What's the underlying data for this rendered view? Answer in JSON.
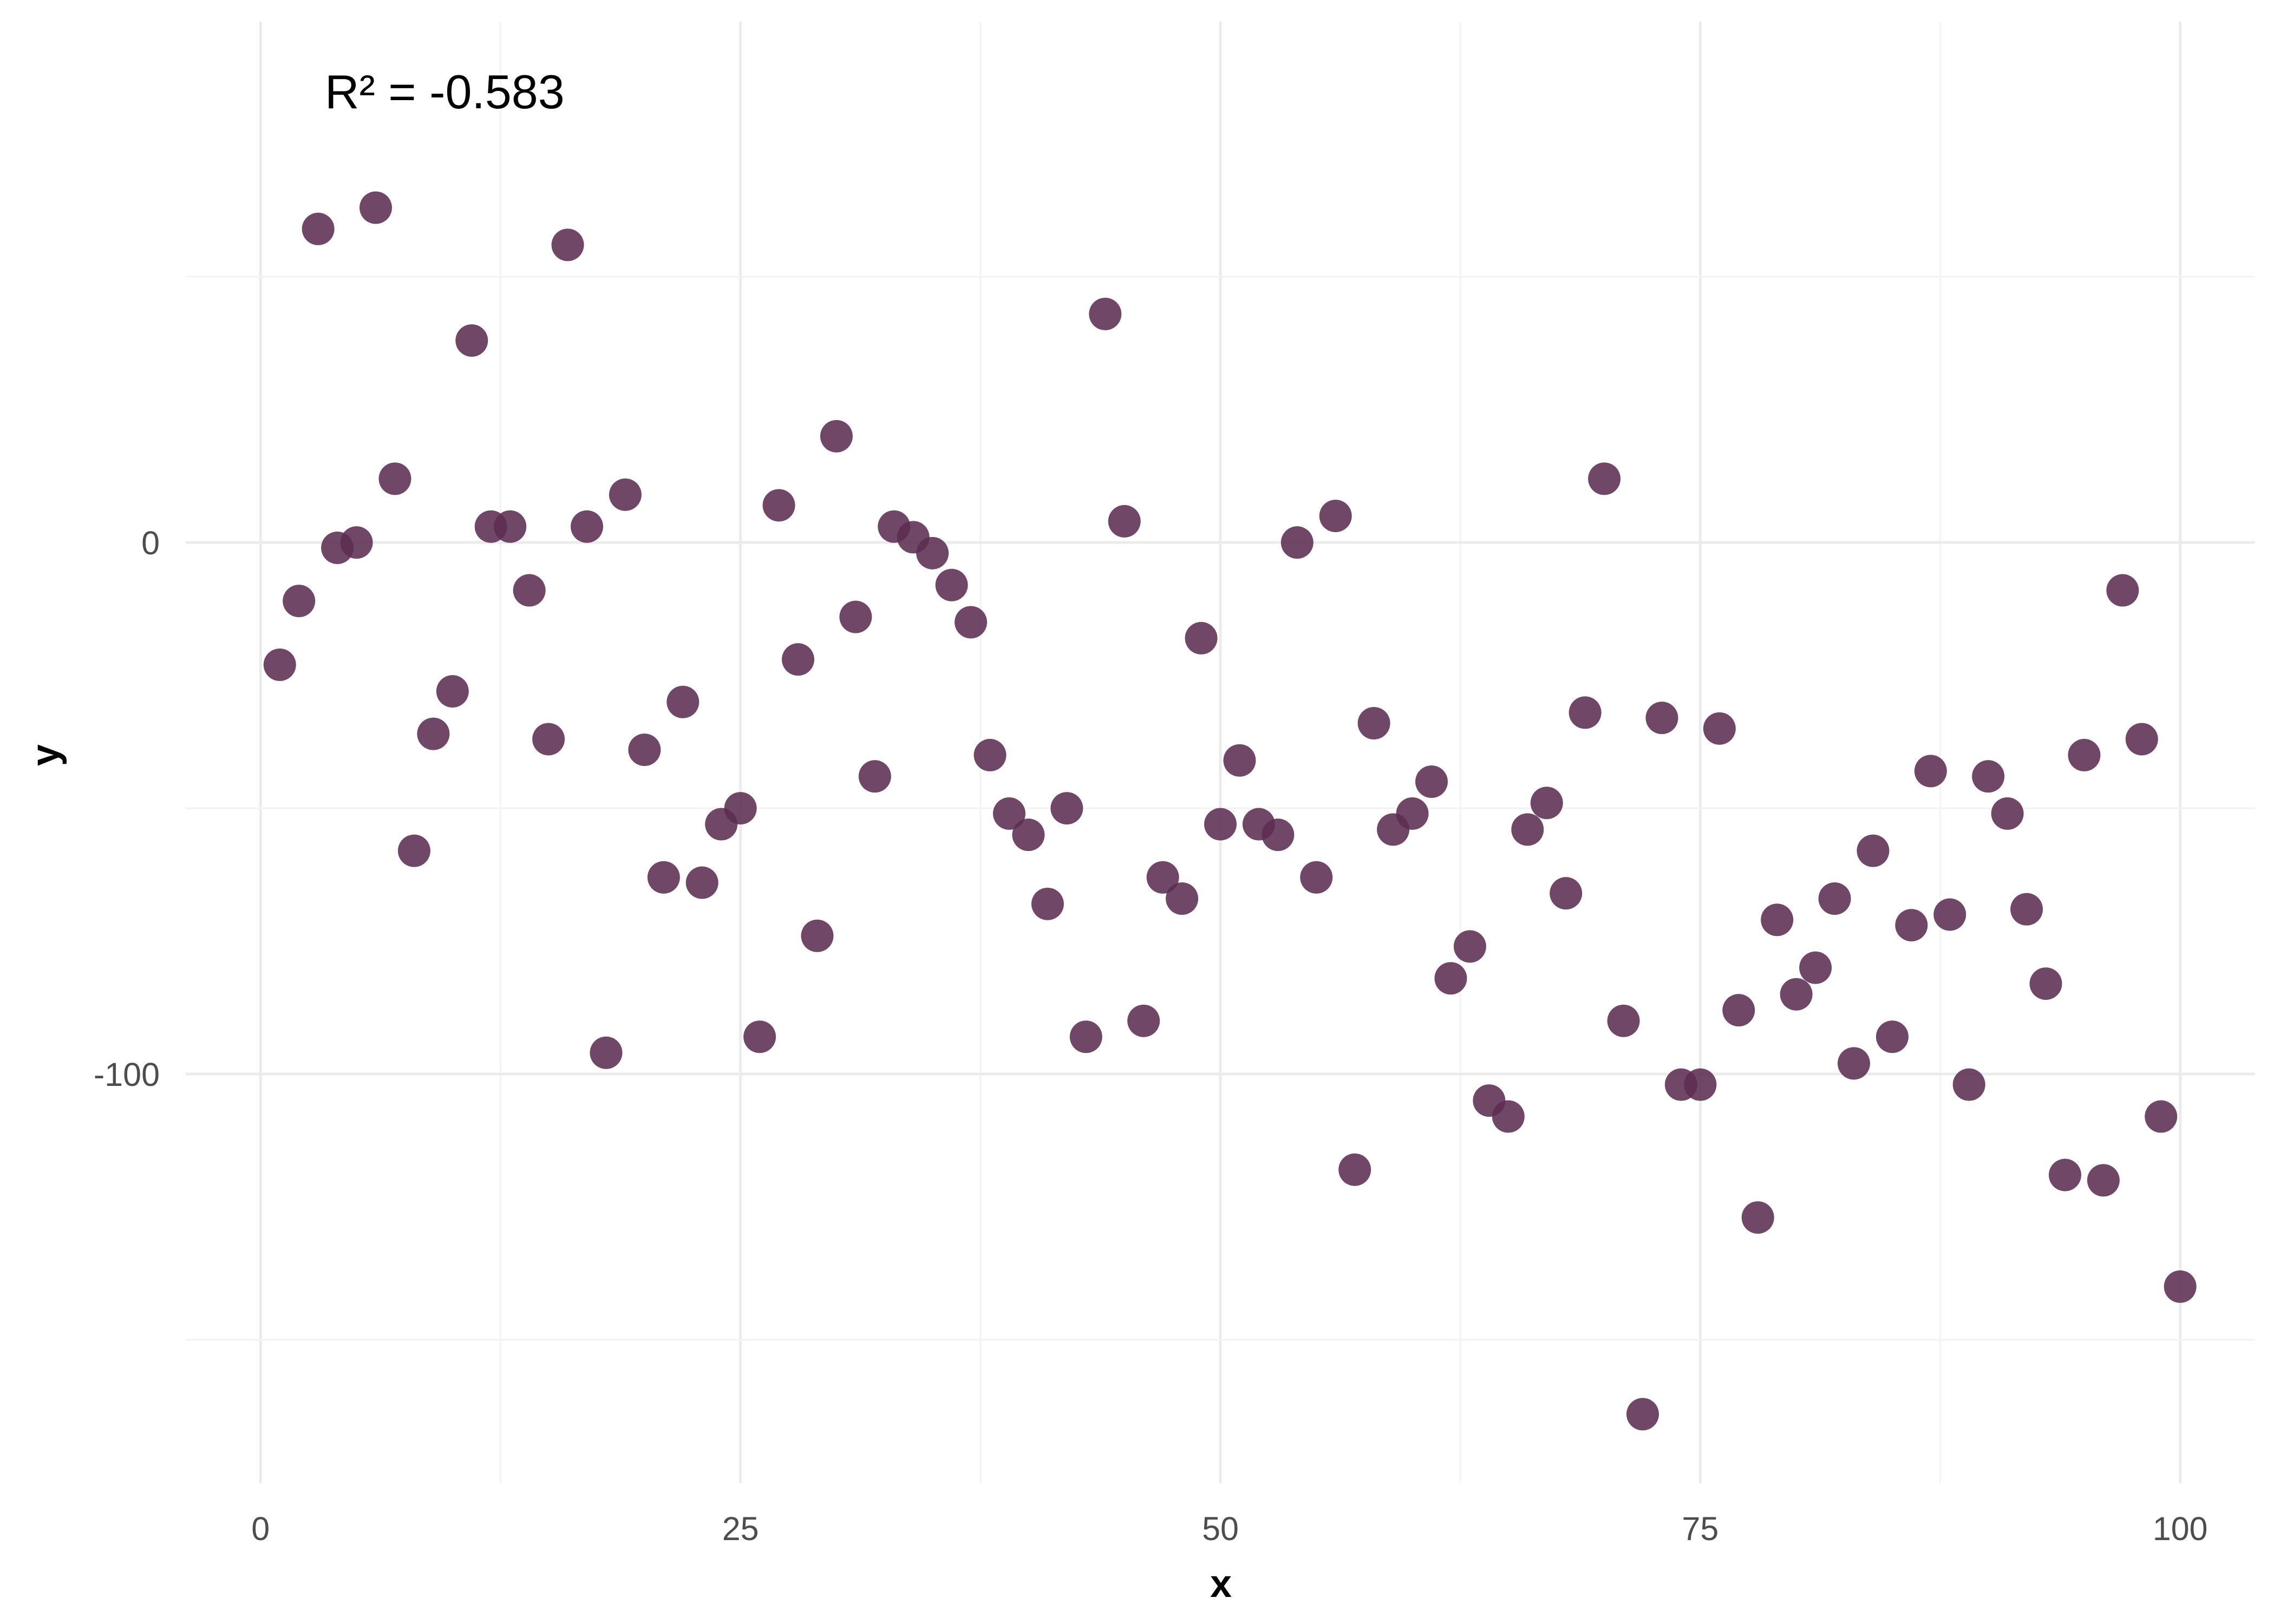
{
  "chart_data": {
    "type": "scatter",
    "title": "",
    "xlabel": "x",
    "ylabel": "y",
    "xlim": [
      -3.9,
      103.9
    ],
    "ylim": [
      -177,
      98
    ],
    "x_ticks": [
      0,
      25,
      50,
      75,
      100
    ],
    "x_tick_labels": [
      "0",
      "25",
      "50",
      "75",
      "100"
    ],
    "y_ticks": [
      0,
      -100
    ],
    "y_tick_labels": [
      "0",
      "-100"
    ],
    "grid": true,
    "annotation": "R² = -0.583",
    "point_color": "#5c2e52",
    "x": [
      1,
      2,
      3,
      4,
      5,
      6,
      7,
      8,
      9,
      10,
      11,
      12,
      13,
      14,
      15,
      16,
      17,
      18,
      19,
      20,
      21,
      22,
      23,
      24,
      25,
      26,
      27,
      28,
      29,
      30,
      31,
      32,
      33,
      34,
      35,
      36,
      37,
      38,
      39,
      40,
      41,
      42,
      43,
      44,
      45,
      46,
      47,
      48,
      49,
      50,
      51,
      52,
      53,
      54,
      55,
      56,
      57,
      58,
      59,
      60,
      61,
      62,
      63,
      64,
      65,
      66,
      67,
      68,
      69,
      70,
      71,
      72,
      73,
      74,
      75,
      76,
      77,
      78,
      79,
      80,
      81,
      82,
      83,
      84,
      85,
      86,
      87,
      88,
      89,
      90,
      91,
      92,
      93,
      94,
      95,
      96,
      97,
      98,
      99,
      100
    ],
    "y": [
      -23,
      -11,
      59,
      -1,
      0,
      63,
      12,
      -58,
      -36,
      -28,
      38,
      3,
      3,
      -9,
      -37,
      56,
      3,
      -96,
      9,
      -39,
      -63,
      -30,
      -64,
      -53,
      -50,
      -93,
      7,
      -22,
      -74,
      20,
      -14,
      -44,
      3,
      1,
      -2,
      -8,
      -15,
      -40,
      -51,
      -55,
      -68,
      -50,
      -93,
      43,
      4,
      -90,
      -63,
      -67,
      -18,
      -53,
      -41,
      -53,
      -55,
      0,
      -63,
      5,
      -118,
      -34,
      -54,
      -51,
      -45,
      -82,
      -76,
      -105,
      -108,
      -54,
      -49,
      -66,
      -32,
      12,
      -90,
      -164,
      -33,
      -102,
      -102,
      -35,
      -88,
      -127,
      -71,
      -85,
      -80,
      -67,
      -98,
      -58,
      -93,
      -72,
      -43,
      -70,
      -102,
      -44,
      -51,
      -69,
      -83,
      -119,
      -40,
      -120,
      -9,
      -37,
      -108,
      -140
    ]
  }
}
